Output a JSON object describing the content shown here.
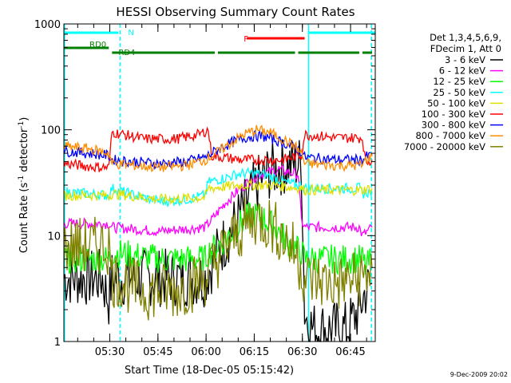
{
  "chart_data": {
    "type": "line",
    "title": "HESSI Observing Summary Count Rates",
    "xlabel": "Start Time (18-Dec-05 05:15:42)",
    "ylabel": "Count Rate (s⁻¹ detector⁻¹)",
    "ylabel_main": "Count Rate (s",
    "ylabel_sup1": "-1",
    "ylabel_mid": " detector",
    "ylabel_sup2": "-1",
    "ylabel_end": ")",
    "y_scale": "log",
    "ylim": [
      1,
      1000
    ],
    "xlim_minutes": [
      0,
      97
    ],
    "x_ticks": [
      {
        "label": "05:30",
        "min": 14.3
      },
      {
        "label": "05:45",
        "min": 29.3
      },
      {
        "label": "06:00",
        "min": 44.3
      },
      {
        "label": "06:15",
        "min": 59.3
      },
      {
        "label": "06:30",
        "min": 74.3
      },
      {
        "label": "06:45",
        "min": 89.3
      }
    ],
    "y_ticks": [
      {
        "label": "1",
        "val": 1
      },
      {
        "label": "10",
        "val": 10
      },
      {
        "label": "100",
        "val": 100
      },
      {
        "label": "1000",
        "val": 1000
      }
    ],
    "legend_header": [
      "Det 1,3,4,5,6,9,",
      "FDecim 1, Att 0"
    ],
    "legend_placement": "right",
    "series": [
      {
        "name": "3 - 6 keV",
        "color": "#000000",
        "points": [
          [
            0,
            4
          ],
          [
            12,
            4
          ],
          [
            13,
            3
          ],
          [
            14,
            2.5
          ],
          [
            15,
            4
          ],
          [
            24,
            4
          ],
          [
            44,
            4
          ],
          [
            48,
            7
          ],
          [
            52,
            11
          ],
          [
            56,
            18
          ],
          [
            60,
            30
          ],
          [
            64,
            40
          ],
          [
            68,
            45
          ],
          [
            72,
            48
          ],
          [
            74,
            48
          ],
          [
            75,
            2
          ],
          [
            76,
            1.5
          ],
          [
            78,
            1.3
          ],
          [
            88,
            1.3
          ],
          [
            92,
            2
          ],
          [
            94,
            3
          ],
          [
            96,
            3.5
          ]
        ]
      },
      {
        "name": "6 - 12 keV",
        "color": "#ff00ff",
        "points": [
          [
            0,
            13
          ],
          [
            14,
            13
          ],
          [
            15,
            12
          ],
          [
            30,
            11
          ],
          [
            44,
            12
          ],
          [
            46,
            14
          ],
          [
            50,
            20
          ],
          [
            55,
            28
          ],
          [
            60,
            37
          ],
          [
            64,
            40
          ],
          [
            67,
            42
          ],
          [
            70,
            40
          ],
          [
            73,
            38
          ],
          [
            74,
            14
          ],
          [
            75,
            12
          ],
          [
            80,
            12
          ],
          [
            92,
            12
          ],
          [
            93,
            10
          ],
          [
            96,
            12
          ]
        ]
      },
      {
        "name": "12 - 25 keV",
        "color": "#00ff00",
        "points": [
          [
            0,
            6
          ],
          [
            14,
            6
          ],
          [
            15,
            7
          ],
          [
            30,
            6
          ],
          [
            44,
            6
          ],
          [
            45,
            7
          ],
          [
            50,
            9
          ],
          [
            55,
            13
          ],
          [
            59,
            16
          ],
          [
            63,
            14
          ],
          [
            67,
            11
          ],
          [
            71,
            8
          ],
          [
            74,
            7
          ],
          [
            75,
            6
          ],
          [
            85,
            6
          ],
          [
            93,
            6
          ],
          [
            94,
            5
          ],
          [
            96,
            6
          ]
        ]
      },
      {
        "name": "25 - 50 keV",
        "color": "#00ffff",
        "points": [
          [
            0,
            26
          ],
          [
            14,
            24
          ],
          [
            15,
            28
          ],
          [
            22,
            24
          ],
          [
            30,
            21
          ],
          [
            38,
            22
          ],
          [
            44,
            24
          ],
          [
            45,
            32
          ],
          [
            50,
            35
          ],
          [
            54,
            38
          ],
          [
            58,
            39
          ],
          [
            62,
            38
          ],
          [
            66,
            35
          ],
          [
            70,
            31
          ],
          [
            74,
            30
          ],
          [
            75,
            28
          ],
          [
            80,
            28
          ],
          [
            92,
            28
          ],
          [
            93,
            25
          ],
          [
            96,
            26
          ]
        ]
      },
      {
        "name": "50 - 100 keV",
        "color": "#e0e000",
        "points": [
          [
            0,
            24
          ],
          [
            14,
            24
          ],
          [
            15,
            25
          ],
          [
            30,
            22
          ],
          [
            44,
            23
          ],
          [
            45,
            28
          ],
          [
            55,
            30
          ],
          [
            65,
            30
          ],
          [
            74,
            28
          ],
          [
            75,
            27
          ],
          [
            85,
            27
          ],
          [
            93,
            27
          ],
          [
            96,
            28
          ]
        ]
      },
      {
        "name": "100 - 300 keV",
        "color": "#ff0000",
        "points": [
          [
            0,
            48
          ],
          [
            8,
            45
          ],
          [
            14,
            44
          ],
          [
            15,
            95
          ],
          [
            25,
            82
          ],
          [
            35,
            82
          ],
          [
            42,
            90
          ],
          [
            45,
            100
          ],
          [
            46,
            57
          ],
          [
            55,
            52
          ],
          [
            62,
            52
          ],
          [
            68,
            52
          ],
          [
            74,
            58
          ],
          [
            75,
            90
          ],
          [
            85,
            84
          ],
          [
            93,
            84
          ],
          [
            94,
            49
          ],
          [
            96,
            52
          ]
        ]
      },
      {
        "name": "300 - 800 keV",
        "color": "#0000ff",
        "points": [
          [
            0,
            63
          ],
          [
            8,
            60
          ],
          [
            14,
            57
          ],
          [
            15,
            52
          ],
          [
            22,
            50
          ],
          [
            30,
            48
          ],
          [
            38,
            50
          ],
          [
            44,
            55
          ],
          [
            48,
            65
          ],
          [
            52,
            75
          ],
          [
            56,
            84
          ],
          [
            60,
            88
          ],
          [
            64,
            84
          ],
          [
            68,
            76
          ],
          [
            72,
            68
          ],
          [
            74,
            62
          ],
          [
            75,
            55
          ],
          [
            85,
            52
          ],
          [
            93,
            52
          ],
          [
            94,
            55
          ],
          [
            96,
            58
          ]
        ]
      },
      {
        "name": "800 - 7000 keV",
        "color": "#ff8c00",
        "points": [
          [
            0,
            70
          ],
          [
            8,
            66
          ],
          [
            14,
            60
          ],
          [
            15,
            48
          ],
          [
            22,
            46
          ],
          [
            30,
            44
          ],
          [
            38,
            46
          ],
          [
            44,
            52
          ],
          [
            48,
            62
          ],
          [
            52,
            75
          ],
          [
            56,
            90
          ],
          [
            60,
            100
          ],
          [
            64,
            95
          ],
          [
            68,
            82
          ],
          [
            72,
            70
          ],
          [
            74,
            60
          ],
          [
            75,
            48
          ],
          [
            85,
            46
          ],
          [
            93,
            46
          ],
          [
            94,
            52
          ],
          [
            96,
            56
          ]
        ]
      },
      {
        "name": "7000 - 20000 keV",
        "color": "#808000",
        "points": [
          [
            0,
            8
          ],
          [
            14,
            8
          ],
          [
            15,
            4
          ],
          [
            25,
            3
          ],
          [
            35,
            3
          ],
          [
            44,
            4
          ],
          [
            48,
            6
          ],
          [
            52,
            9
          ],
          [
            56,
            12
          ],
          [
            60,
            15
          ],
          [
            64,
            13
          ],
          [
            68,
            10
          ],
          [
            72,
            7
          ],
          [
            74,
            5
          ],
          [
            75,
            4
          ],
          [
            85,
            3.5
          ],
          [
            93,
            4
          ],
          [
            96,
            5
          ]
        ]
      }
    ],
    "overlays": {
      "N": {
        "label": "N",
        "color": "#00ffff",
        "segments": [
          [
            0,
            17
          ],
          [
            76,
            97
          ]
        ]
      },
      "F": {
        "label": "F",
        "color": "#ff0000",
        "segments": [
          [
            57,
            75
          ]
        ]
      },
      "RD0": {
        "label": "RD0",
        "color": "#008000",
        "segments": [
          [
            0,
            14
          ]
        ]
      },
      "RD4": {
        "label": "RD4",
        "color": "#008000",
        "segments": [
          [
            15,
            47
          ],
          [
            48,
            72
          ],
          [
            73,
            92
          ],
          [
            93,
            96
          ]
        ]
      }
    },
    "vlines": [
      {
        "min": 0.2,
        "color": "#00ffff",
        "style": "solid"
      },
      {
        "min": 17.5,
        "color": "#00ffff",
        "style": "dashed"
      },
      {
        "min": 76.2,
        "color": "#00ffff",
        "style": "solid"
      },
      {
        "min": 95.8,
        "color": "#00ffff",
        "style": "dashed"
      }
    ]
  },
  "footer": {
    "timestamp": "9-Dec-2009 20:02"
  }
}
